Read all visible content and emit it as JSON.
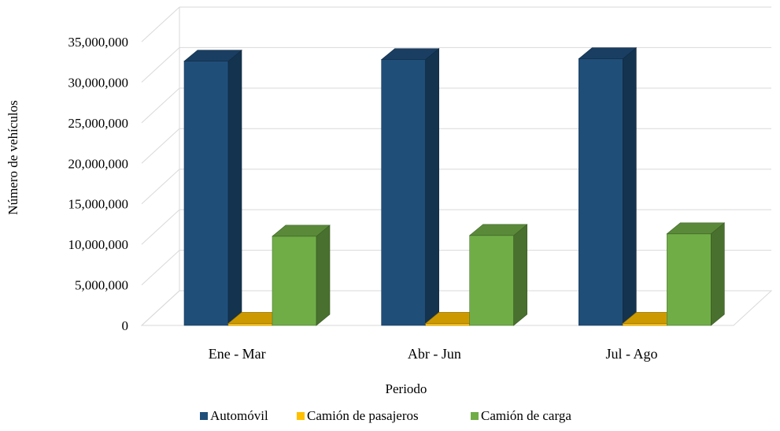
{
  "chart_data": {
    "type": "bar",
    "style": "3d-clustered-column",
    "title": "",
    "xlabel": "Periodo",
    "ylabel": "Número de vehículos",
    "categories": [
      "Ene - Mar",
      "Abr - Jun",
      "Jul - Ago"
    ],
    "series": [
      {
        "name": "Automóvil",
        "values": [
          32600000,
          32800000,
          32900000
        ],
        "color": "#1f4e79"
      },
      {
        "name": "Camión de pasajeros",
        "values": [
          250000,
          250000,
          250000
        ],
        "color": "#ffc000"
      },
      {
        "name": "Camión de carga",
        "values": [
          11000000,
          11100000,
          11300000
        ],
        "color": "#70ad47"
      }
    ],
    "ylim": [
      0,
      35000000
    ],
    "yticks": [
      0,
      5000000,
      10000000,
      15000000,
      20000000,
      25000000,
      30000000,
      35000000
    ],
    "ytick_labels": [
      "0",
      "5,000,000",
      "10,000,000",
      "15,000,000",
      "20,000,000",
      "25,000,000",
      "30,000,000",
      "35,000,000"
    ],
    "grid": true,
    "legend_position": "bottom"
  }
}
